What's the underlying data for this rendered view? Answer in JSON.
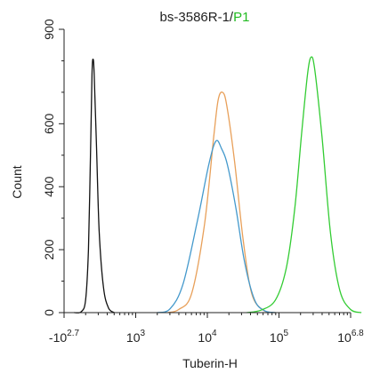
{
  "chart_data": {
    "type": "line",
    "title": "bs-3586R-1/",
    "title_suffix": "P1",
    "title_suffix_color": "#22bb22",
    "xlabel": "Tuberin-H",
    "ylabel": "Count",
    "ylim": [
      0,
      900
    ],
    "x_scale": "log",
    "y_ticks": [
      0,
      200,
      400,
      600,
      900
    ],
    "x_ticks": [
      {
        "base": "-10",
        "exp": "2.7",
        "pos": 0
      },
      {
        "base": "10",
        "exp": "3",
        "pos": 1
      },
      {
        "base": "10",
        "exp": "4",
        "pos": 2
      },
      {
        "base": "10",
        "exp": "5",
        "pos": 3
      },
      {
        "base": "10",
        "exp": "6.8",
        "pos": 4
      }
    ],
    "grid": false,
    "legend": "none",
    "series": [
      {
        "color": "#111111",
        "points": [
          [
            0.14,
            0
          ],
          [
            0.24,
            3
          ],
          [
            0.3,
            40
          ],
          [
            0.34,
            200
          ],
          [
            0.37,
            520
          ],
          [
            0.39,
            760
          ],
          [
            0.405,
            805
          ],
          [
            0.42,
            760
          ],
          [
            0.45,
            550
          ],
          [
            0.49,
            260
          ],
          [
            0.55,
            80
          ],
          [
            0.62,
            15
          ],
          [
            0.7,
            0
          ]
        ]
      },
      {
        "color": "#e8a05a",
        "points": [
          [
            1.45,
            0
          ],
          [
            1.6,
            10
          ],
          [
            1.78,
            60
          ],
          [
            1.96,
            280
          ],
          [
            2.09,
            560
          ],
          [
            2.15,
            675
          ],
          [
            2.21,
            700
          ],
          [
            2.27,
            660
          ],
          [
            2.38,
            480
          ],
          [
            2.5,
            230
          ],
          [
            2.62,
            60
          ],
          [
            2.78,
            8
          ],
          [
            2.95,
            0
          ]
        ]
      },
      {
        "color": "#4499cc",
        "points": [
          [
            1.3,
            0
          ],
          [
            1.48,
            12
          ],
          [
            1.66,
            90
          ],
          [
            1.86,
            290
          ],
          [
            2.02,
            470
          ],
          [
            2.12,
            545
          ],
          [
            2.2,
            520
          ],
          [
            2.28,
            470
          ],
          [
            2.4,
            330
          ],
          [
            2.52,
            160
          ],
          [
            2.66,
            40
          ],
          [
            2.8,
            6
          ],
          [
            2.95,
            0
          ]
        ]
      },
      {
        "color": "#33cc33",
        "points": [
          [
            2.55,
            0
          ],
          [
            2.75,
            8
          ],
          [
            2.95,
            40
          ],
          [
            3.1,
            140
          ],
          [
            3.22,
            330
          ],
          [
            3.32,
            580
          ],
          [
            3.4,
            760
          ],
          [
            3.45,
            812
          ],
          [
            3.5,
            770
          ],
          [
            3.6,
            560
          ],
          [
            3.72,
            250
          ],
          [
            3.85,
            70
          ],
          [
            4.0,
            10
          ],
          [
            4.15,
            0
          ]
        ]
      }
    ]
  }
}
